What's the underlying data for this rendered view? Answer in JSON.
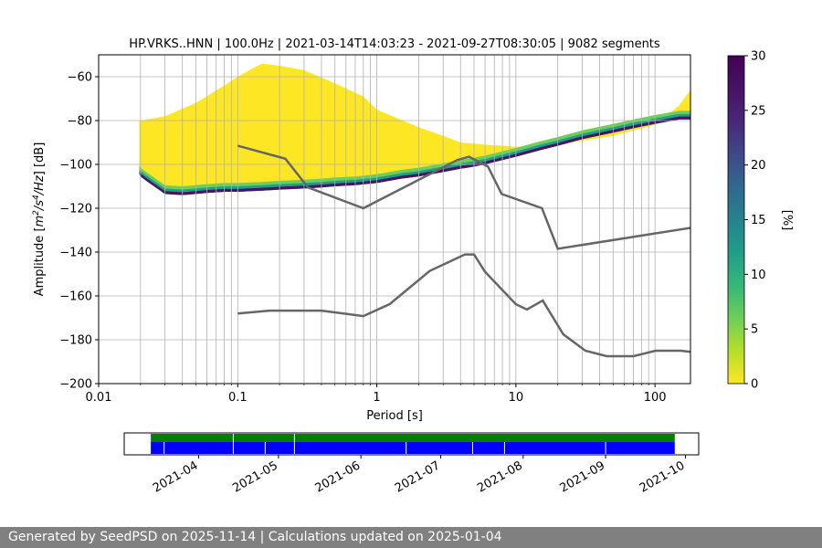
{
  "chart_data": [
    {
      "type": "heatmap",
      "title": "HP.VRKS..HNN | 100.0Hz | 2021-03-14T14:03:23 - 2021-09-27T08:30:05 | 9082 segments",
      "xlabel": "Period [s]",
      "ylabel": "Amplitude [m²/s⁴/Hz] [dB]",
      "ylabel_main": "Amplitude [",
      "ylabel_m": "m",
      "ylabel_exp1": "2",
      "ylabel_mid": "/s",
      "ylabel_exp2": "4",
      "ylabel_tail": "/Hz",
      "ylabel_unit": "] [dB]",
      "xscale": "log",
      "xlim": [
        0.01,
        180
      ],
      "ylim": [
        -200,
        -50
      ],
      "x_ticks": [
        "0.01",
        "0.1",
        "1",
        "10",
        "100"
      ],
      "y_ticks": [
        "−200",
        "−180",
        "−160",
        "−140",
        "−120",
        "−100",
        "−80",
        "−60"
      ],
      "grid": true,
      "colorbar": {
        "label": "[%]",
        "range": [
          0,
          30
        ],
        "ticks": [
          "0",
          "5",
          "10",
          "15",
          "20",
          "25",
          "30"
        ],
        "colormap": "viridis_r"
      },
      "mode_curve": {
        "x": [
          0.0196,
          0.0196,
          0.0196,
          0.02,
          0.021,
          0.022,
          0.03,
          0.04,
          0.05,
          0.06,
          0.08,
          0.1,
          0.15,
          0.2,
          0.3,
          0.4,
          0.5,
          0.7,
          1,
          1.5,
          2,
          3,
          4,
          5,
          6,
          8,
          10,
          15,
          20,
          30,
          50,
          70,
          100,
          150,
          180
        ],
        "y": [
          -100,
          -102,
          -104,
          -105,
          -106,
          -107,
          -113,
          -113.5,
          -113,
          -112.5,
          -112,
          -112,
          -111.5,
          -111,
          -110.5,
          -110,
          -109.5,
          -109,
          -108,
          -106,
          -105,
          -103,
          -101.5,
          -100.5,
          -99.5,
          -97.5,
          -96,
          -93,
          -91,
          -88,
          -85,
          -83,
          -81,
          -79,
          -79
        ]
      },
      "upper_spread": {
        "x": [
          0.0196,
          0.02,
          0.03,
          0.05,
          0.08,
          0.1,
          0.13,
          0.15,
          0.2,
          0.3,
          0.5,
          0.8,
          1,
          2,
          3,
          4,
          6,
          10,
          20,
          50,
          100,
          150,
          180
        ],
        "y": [
          -80,
          -80,
          -78,
          -72,
          -64,
          -60,
          -56,
          -54,
          -55,
          -57,
          -63,
          -69,
          -75,
          -83,
          -87,
          -90,
          -91,
          -92,
          -91,
          -87,
          -82,
          -73,
          -66
        ]
      },
      "nlnm": {
        "x": [
          0.1,
          0.17,
          0.4,
          0.8,
          1.24,
          2.4,
          4.3,
          5,
          6,
          10,
          12,
          15.6,
          21.9,
          31.6,
          45,
          70,
          101,
          154,
          180
        ],
        "y": [
          -168,
          -166.7,
          -166.7,
          -169.2,
          -163.7,
          -148.6,
          -141.1,
          -141.1,
          -149,
          -163.8,
          -166.2,
          -162.1,
          -177.5,
          -185,
          -187.5,
          -187.5,
          -185,
          -185,
          -185.5
        ]
      },
      "nhnm": {
        "x": [
          0.1,
          0.22,
          0.32,
          0.8,
          3.8,
          4.6,
          6.3,
          7.9,
          15.4,
          20,
          354.8
        ],
        "y": [
          -91.5,
          -97.4,
          -110.5,
          -120,
          -98,
          -96.5,
          -101,
          -113.5,
          -120,
          -138.5,
          -126
        ]
      }
    },
    {
      "type": "timeline",
      "start": "2021-03-14",
      "end": "2021-09-27",
      "axis_start": "2021-03-04",
      "axis_end": "2021-10-06",
      "tick_labels": [
        "2021-04",
        "2021-05",
        "2021-06",
        "2021-07",
        "2021-08",
        "2021-09",
        "2021-10"
      ],
      "tick_dates": [
        "2021-04-01",
        "2021-05-01",
        "2021-06-01",
        "2021-07-01",
        "2021-08-01",
        "2021-09-01",
        "2021-10-01"
      ],
      "bar_colors": {
        "top": "#007f00",
        "bottom": "#0000ff"
      },
      "gap_dates": [
        "2021-03-19",
        "2021-04-14",
        "2021-04-26",
        "2021-05-07",
        "2021-06-18",
        "2021-07-13",
        "2021-07-25",
        "2021-09-01"
      ],
      "top_gap_dates": [
        "2021-04-14",
        "2021-05-07"
      ]
    }
  ],
  "footer": {
    "text": "Generated by SeedPSD on 2025-11-14 | Calculations updated on 2025-01-04"
  }
}
